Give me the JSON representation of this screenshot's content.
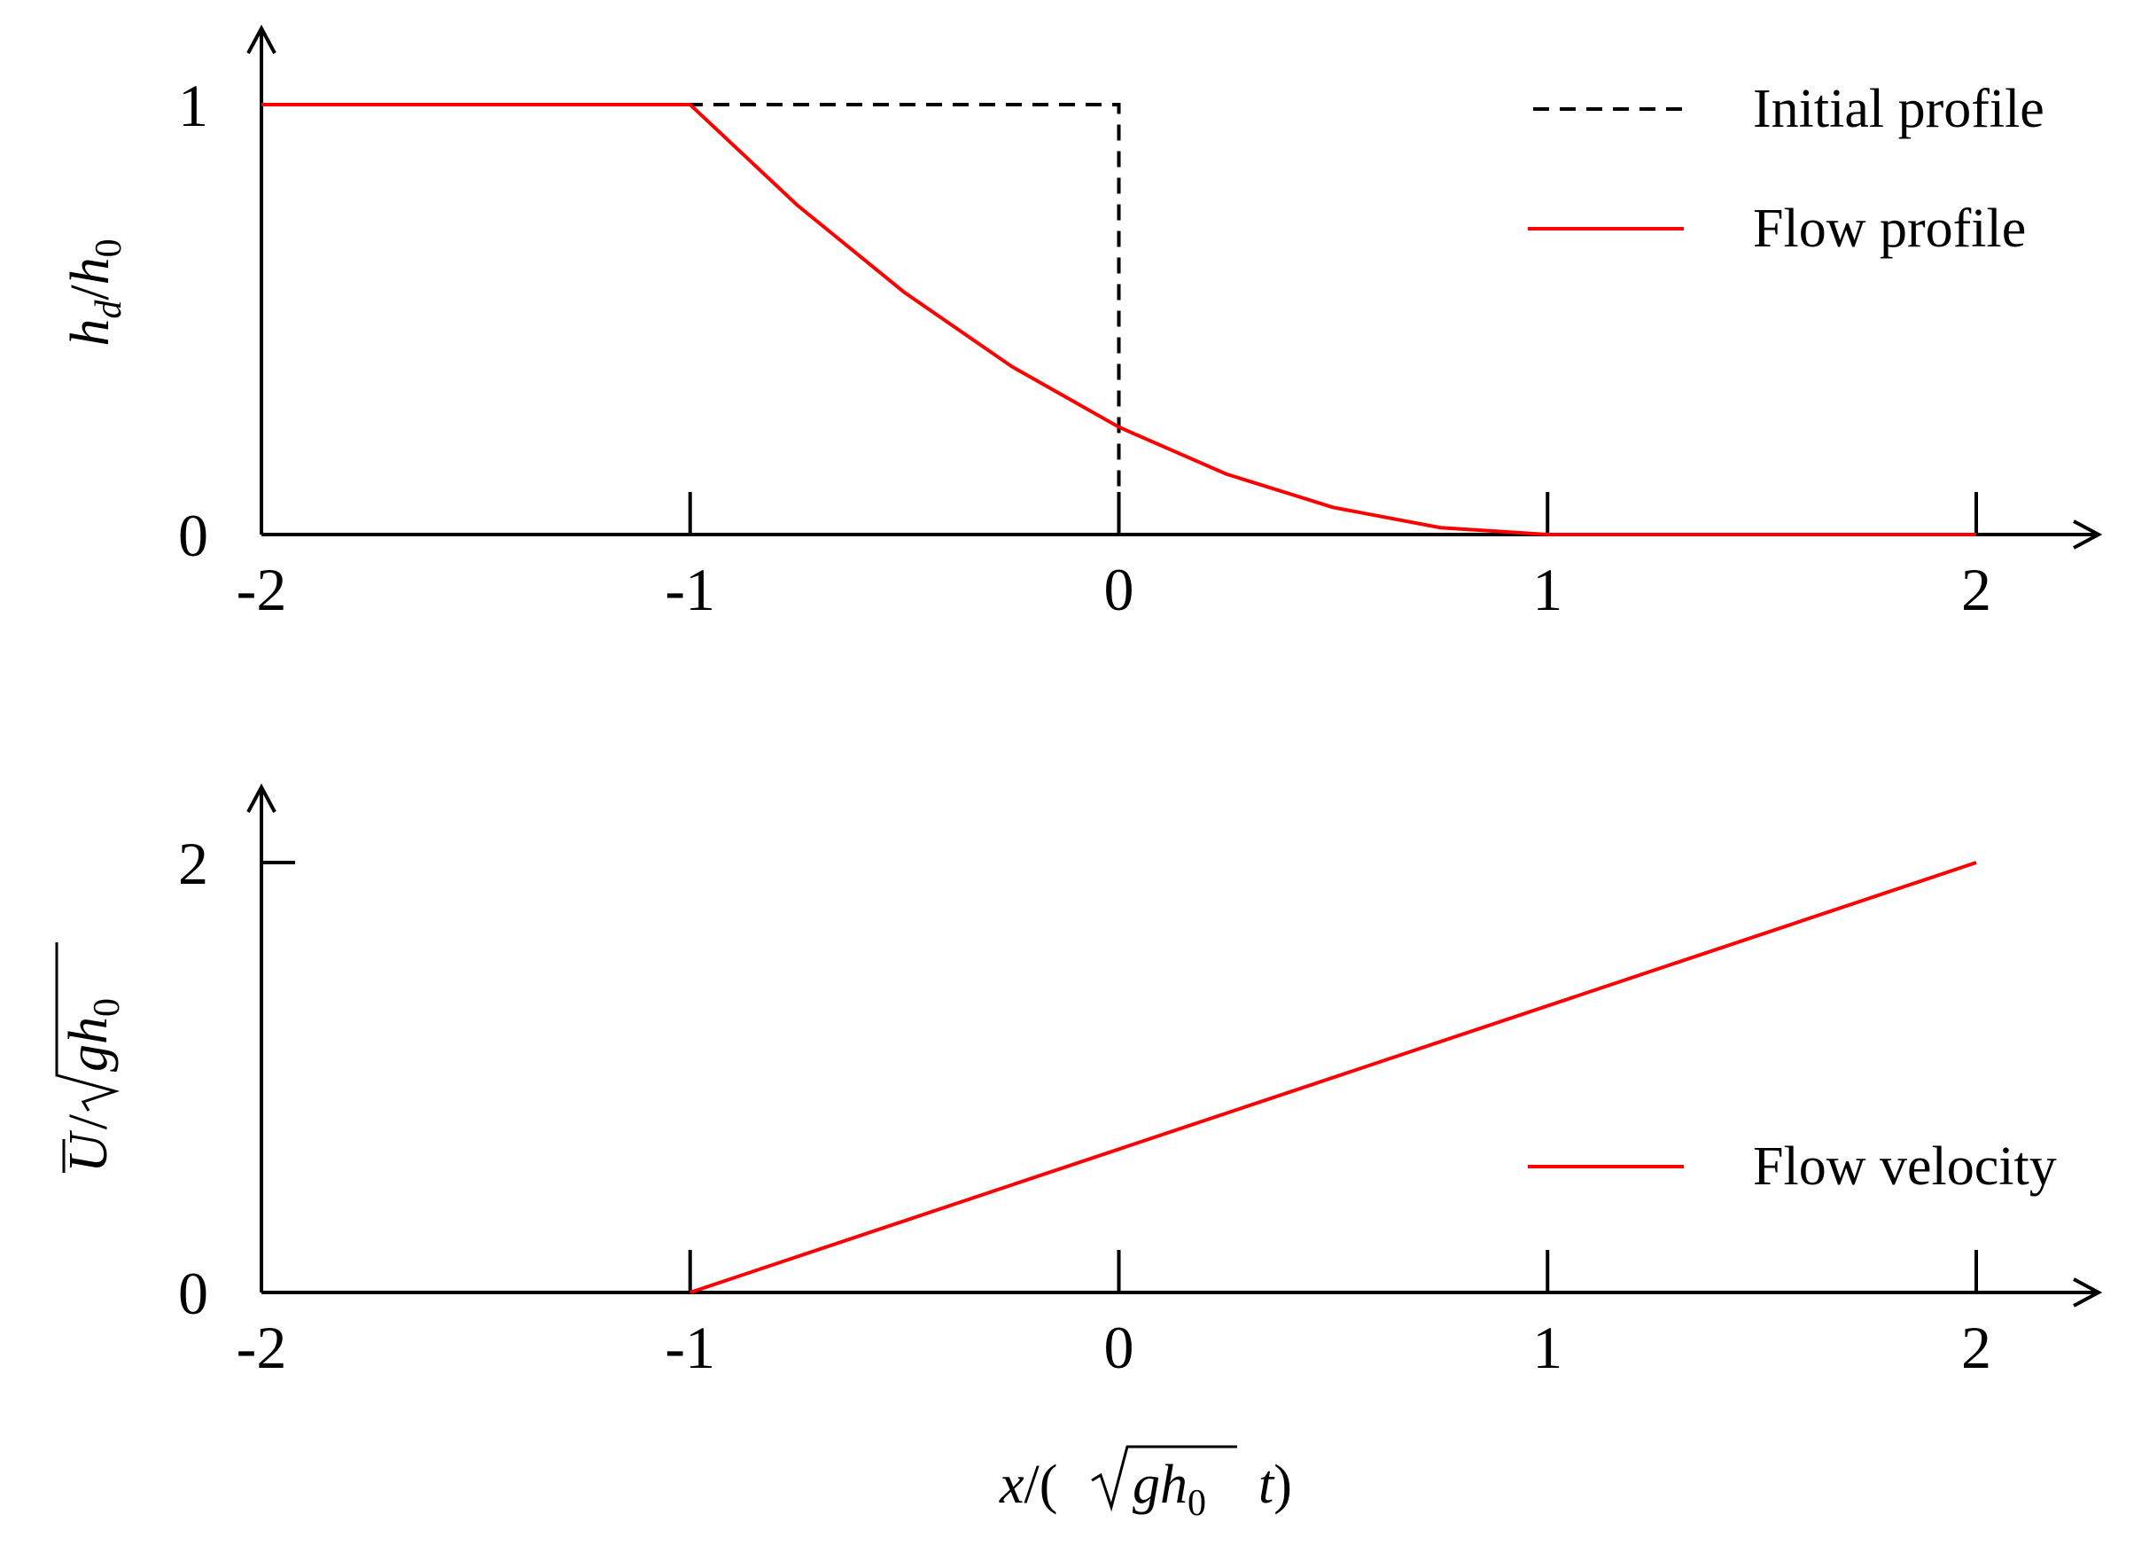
{
  "chart_data": [
    {
      "type": "line",
      "ylabel": "h_d/h_0",
      "xlim": [
        -2,
        2
      ],
      "ylim": [
        0,
        1
      ],
      "x_ticks": [
        "-2",
        "-1",
        "0",
        "1",
        "2"
      ],
      "y_ticks": [
        "0",
        "1"
      ],
      "legend": {
        "placement": "top-right",
        "entries": [
          "Initial profile",
          "Flow profile"
        ]
      },
      "series": [
        {
          "name": "Initial profile",
          "style": "dashed",
          "color": "#000000",
          "x": [
            -2,
            0,
            0,
            2
          ],
          "y": [
            1,
            1,
            0,
            0
          ]
        },
        {
          "name": "Flow profile",
          "style": "solid",
          "color": "#ff0000",
          "x": [
            -2,
            -1,
            -0.75,
            -0.5,
            -0.25,
            0,
            0.25,
            0.5,
            0.75,
            1,
            1.25,
            1.5,
            1.75,
            2
          ],
          "y": [
            1,
            1,
            0.766,
            0.563,
            0.391,
            0.25,
            0.141,
            0.063,
            0.016,
            0.0,
            0.0,
            0.0,
            0.0,
            0.0
          ]
        }
      ]
    },
    {
      "type": "line",
      "ylabel": "Ū/√(gh_0)",
      "xlabel": "x/(√(gh_0) t)",
      "xlim": [
        -2,
        2
      ],
      "ylim": [
        0,
        2
      ],
      "x_ticks": [
        "-2",
        "-1",
        "0",
        "1",
        "2"
      ],
      "y_ticks": [
        "0",
        "2"
      ],
      "legend": {
        "placement": "right",
        "entries": [
          "Flow velocity"
        ]
      },
      "series": [
        {
          "name": "Flow velocity",
          "style": "solid",
          "color": "#ff0000",
          "x": [
            -1,
            2
          ],
          "y": [
            0,
            2
          ]
        }
      ]
    }
  ],
  "labels": {
    "top_ylabel_main": "h",
    "top_ylabel_sub1": "d",
    "top_ylabel_slash": "/",
    "top_ylabel_main2": "h",
    "top_ylabel_sub2": "0",
    "bottom_ylabel_u": "U",
    "bottom_ylabel_slash": "/",
    "bottom_ylabel_g": "g",
    "bottom_ylabel_h": "h",
    "bottom_ylabel_sub": "0",
    "xlabel_x": "x",
    "xlabel_slash_paren": "/(",
    "xlabel_g": "g",
    "xlabel_h": "h",
    "xlabel_sub": "0",
    "xlabel_t": "t",
    "xlabel_close": ")"
  }
}
